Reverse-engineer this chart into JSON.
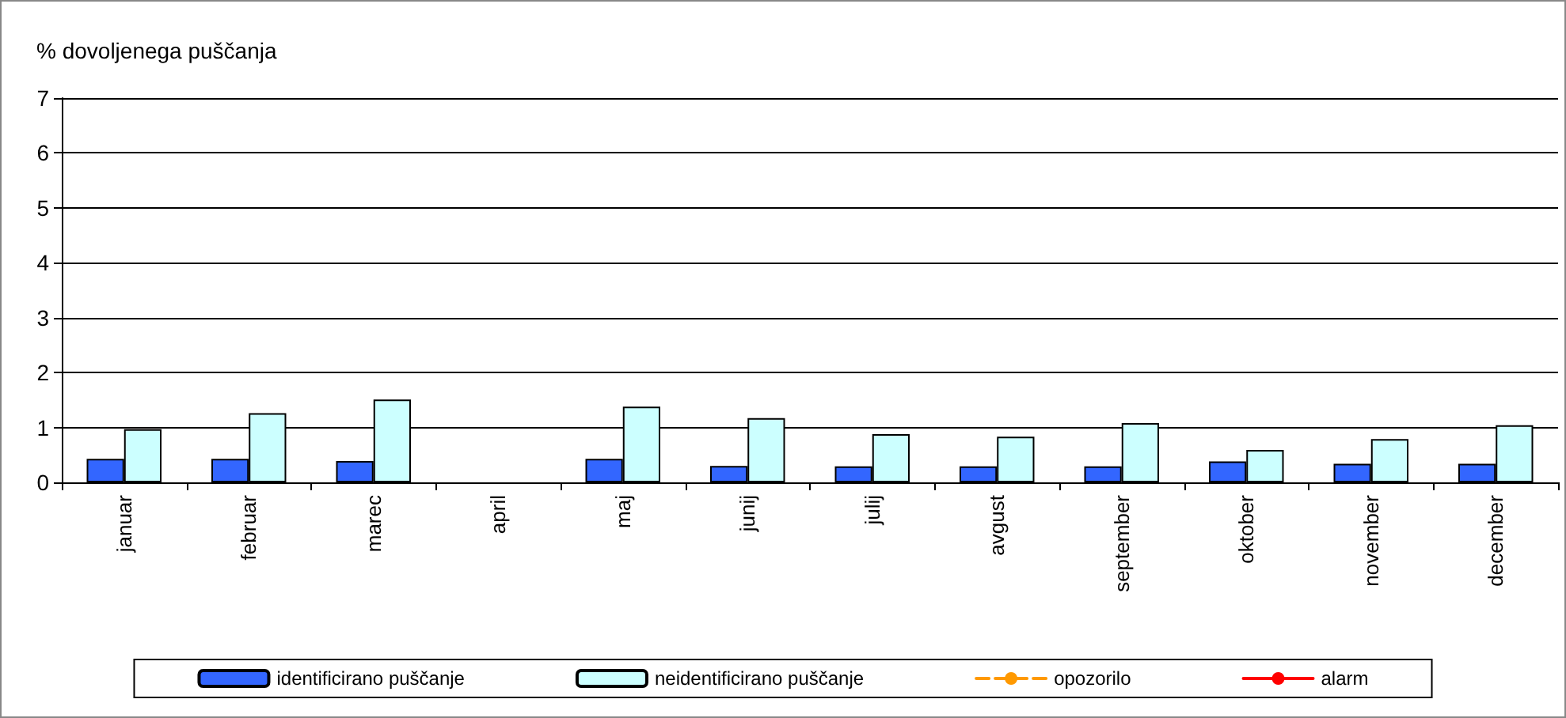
{
  "chart_data": {
    "type": "bar",
    "ylabel": "% dovoljenega puščanja",
    "categories": [
      "januar",
      "februar",
      "marec",
      "april",
      "maj",
      "junij",
      "julij",
      "avgust",
      "september",
      "oktober",
      "november",
      "december"
    ],
    "series": [
      {
        "name": "identificirano puščanje",
        "color": "#3366ff",
        "values": [
          0.43,
          0.43,
          0.39,
          null,
          0.43,
          0.3,
          0.29,
          0.29,
          0.29,
          0.38,
          0.34,
          0.34
        ]
      },
      {
        "name": "neidentificirano puščanje",
        "color": "#ccffff",
        "values": [
          0.97,
          1.26,
          1.51,
          null,
          1.38,
          1.17,
          0.88,
          0.83,
          1.08,
          0.59,
          0.79,
          1.04
        ]
      },
      {
        "name": "opozorilo",
        "type": "line",
        "color": "#ff9900",
        "line_style": "dashed",
        "values": [
          null,
          null,
          null,
          null,
          null,
          null,
          null,
          null,
          null,
          null,
          null,
          null
        ]
      },
      {
        "name": "alarm",
        "type": "line",
        "color": "#ff0000",
        "line_style": "solid",
        "values": [
          null,
          null,
          null,
          null,
          null,
          null,
          null,
          null,
          null,
          null,
          null,
          null
        ]
      }
    ],
    "ylim": [
      0,
      7
    ],
    "yticks": [
      0,
      1,
      2,
      3,
      4,
      5,
      6,
      7
    ],
    "grid": "y",
    "legend": "bottom"
  }
}
